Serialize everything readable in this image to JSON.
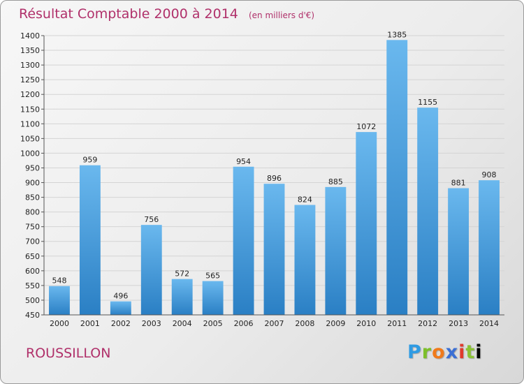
{
  "title": "Résultat Comptable 2000 à 2014",
  "unit_note": "(en milliers d'€)",
  "commune": "ROUSSILLON",
  "logo_text": "Proxiti",
  "colors": {
    "title": "#b0306a",
    "bar_top": "#6ab8ee",
    "bar_bottom": "#2a7fc4"
  },
  "chart_data": {
    "type": "bar",
    "categories": [
      "2000",
      "2001",
      "2002",
      "2003",
      "2004",
      "2005",
      "2006",
      "2007",
      "2008",
      "2009",
      "2010",
      "2011",
      "2012",
      "2013",
      "2014"
    ],
    "values": [
      548,
      959,
      496,
      756,
      572,
      565,
      954,
      896,
      824,
      885,
      1072,
      1385,
      1155,
      881,
      908
    ],
    "ylim": [
      450,
      1400
    ],
    "yticks": [
      450,
      500,
      550,
      600,
      650,
      700,
      750,
      800,
      850,
      900,
      950,
      1000,
      1050,
      1100,
      1150,
      1200,
      1250,
      1300,
      1350,
      1400
    ],
    "grid": true,
    "data_labels": true
  }
}
